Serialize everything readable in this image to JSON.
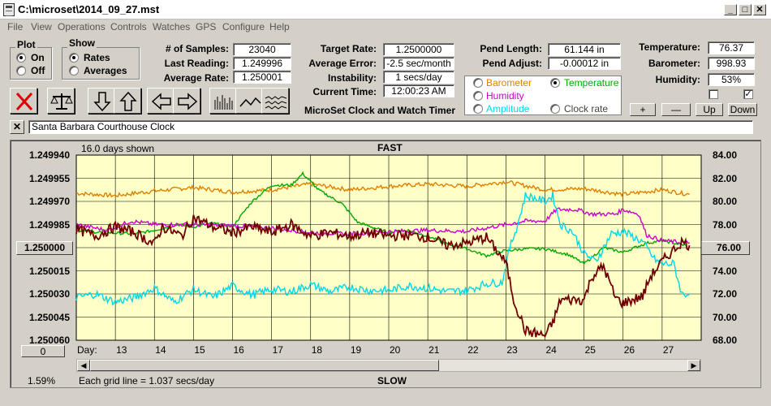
{
  "window": {
    "title": "C:\\microset\\2014_09_27.mst"
  },
  "menu": [
    "File",
    "View",
    "Operations",
    "Controls",
    "Watches",
    "GPS",
    "Configure",
    "Help"
  ],
  "plot_group": {
    "title": "Plot",
    "on": "On",
    "off": "Off",
    "selected": "On"
  },
  "show_group": {
    "title": "Show",
    "rates": "Rates",
    "averages": "Averages",
    "selected": "Rates"
  },
  "stats": {
    "samples_label": "# of Samples:",
    "samples": "23040",
    "last_label": "Last Reading:",
    "last": "1.249996",
    "avg_label": "Average Rate:",
    "avg": "1.250001",
    "target_label": "Target Rate:",
    "target": "1.2500000",
    "error_label": "Average Error:",
    "error": "-2.5 sec/month",
    "instab_label": "Instability:",
    "instab": "1 secs/day",
    "time_label": "Current Time:",
    "time": "12:00:23 AM",
    "pend_len_label": "Pend Length:",
    "pend_len": "61.144 in",
    "pend_adj_label": "Pend Adjust:",
    "pend_adj": "-0.00012 in",
    "temp_label": "Temperature:",
    "temp": "76.37",
    "baro_label": "Barometer:",
    "baro": "998.93",
    "hum_label": "Humidity:",
    "hum": "53%"
  },
  "brand": "MicroSet Clock and Watch Timer",
  "overlay_select": {
    "barometer": "Barometer",
    "temperature": "Temperature",
    "humidity": "Humidity",
    "amplitude": "Amplitude",
    "clock_rate": "Clock rate",
    "selected": "Temperature"
  },
  "colors": {
    "barometer": "#e08000",
    "temperature": "#00aa00",
    "humidity": "#cc00cc",
    "amplitude": "#00d8e8",
    "clock_rate": "#700000",
    "plot_bg": "#ffffc8"
  },
  "buttons": {
    "plus": "+",
    "minus": "—",
    "up": "Up",
    "down": "Down"
  },
  "checkboxes": {
    "left_checked": false,
    "right_checked": true,
    "right_mark": "✓"
  },
  "watch_name": "Santa Barbara Courthouse Clock",
  "chart_data": {
    "type": "line",
    "top_label": "FAST",
    "bottom_label": "SLOW",
    "days_shown": "16.0 days shown",
    "grid_note": "Each grid line = 1.037 secs/day",
    "percent": "1.59%",
    "left_axis_box": "1.250000",
    "right_axis_box": "76.00",
    "zero_btn": "0",
    "day_prefix": "Day:",
    "ylim_left": [
      1.24994,
      1.25006
    ],
    "yticks_left": [
      "1.249940",
      "1.249955",
      "1.249970",
      "1.249985",
      "1.250000",
      "1.250015",
      "1.250030",
      "1.250045",
      "1.250060"
    ],
    "ylim_right": [
      68,
      84
    ],
    "yticks_right": [
      "84.00",
      "82.00",
      "80.00",
      "78.00",
      "76.00",
      "74.00",
      "72.00",
      "70.00",
      "68.00"
    ],
    "xlim": [
      12,
      28
    ],
    "days": [
      13,
      14,
      15,
      16,
      17,
      18,
      19,
      20,
      21,
      22,
      23,
      24,
      25,
      26,
      27
    ],
    "series": [
      {
        "key": "barometer",
        "color": "#e08000",
        "points": [
          [
            12,
            80.7
          ],
          [
            13,
            80.5
          ],
          [
            14,
            80.9
          ],
          [
            15,
            81.2
          ],
          [
            16,
            80.8
          ],
          [
            17,
            81.0
          ],
          [
            18,
            81.5
          ],
          [
            19,
            81.0
          ],
          [
            20,
            81.3
          ],
          [
            21,
            81.5
          ],
          [
            22,
            81.3
          ],
          [
            23,
            81.7
          ],
          [
            24,
            81.0
          ],
          [
            25,
            81.1
          ],
          [
            26,
            80.6
          ],
          [
            27,
            81.0
          ],
          [
            27.7,
            80.6
          ]
        ]
      },
      {
        "key": "temperature",
        "color": "#00aa00",
        "points": [
          [
            12,
            77.5
          ],
          [
            12.7,
            77.3
          ],
          [
            13.5,
            77.2
          ],
          [
            14,
            77.5
          ],
          [
            14.6,
            78.0
          ],
          [
            15,
            77.8
          ],
          [
            15.5,
            78.1
          ],
          [
            16,
            77.8
          ],
          [
            16.5,
            80.0
          ],
          [
            17,
            81.4
          ],
          [
            17.5,
            81.4
          ],
          [
            17.8,
            82.4
          ],
          [
            18.2,
            81.0
          ],
          [
            18.8,
            79.8
          ],
          [
            19.2,
            78.2
          ],
          [
            20,
            77.3
          ],
          [
            20.5,
            77.5
          ],
          [
            21,
            77.0
          ],
          [
            21.5,
            76.3
          ],
          [
            22,
            75.9
          ],
          [
            22.5,
            75.3
          ],
          [
            22.9,
            75.7
          ],
          [
            23.5,
            75.9
          ],
          [
            24,
            75.9
          ],
          [
            24.6,
            75.4
          ],
          [
            25,
            74.6
          ],
          [
            25.5,
            76.0
          ],
          [
            26,
            75.6
          ],
          [
            26.6,
            76.4
          ],
          [
            27,
            76.6
          ],
          [
            27.6,
            76.2
          ]
        ]
      },
      {
        "key": "humidity",
        "color": "#cc00cc",
        "points": [
          [
            12,
            78.0
          ],
          [
            12.8,
            77.5
          ],
          [
            13.4,
            78.3
          ],
          [
            14,
            78.0
          ],
          [
            15,
            78.0
          ],
          [
            16,
            77.9
          ],
          [
            17,
            77.7
          ],
          [
            18,
            77.3
          ],
          [
            19,
            77.2
          ],
          [
            20,
            77.4
          ],
          [
            21,
            77.5
          ],
          [
            22,
            77.4
          ],
          [
            23,
            78.0
          ],
          [
            23.5,
            78.3
          ],
          [
            24,
            78.3
          ],
          [
            24.3,
            79.3
          ],
          [
            24.8,
            79.3
          ],
          [
            25.2,
            78.9
          ],
          [
            25.8,
            78.9
          ],
          [
            26,
            79.3
          ],
          [
            26.4,
            78.9
          ],
          [
            26.6,
            77.1
          ],
          [
            27,
            76.6
          ],
          [
            27.7,
            76.4
          ]
        ]
      },
      {
        "key": "amplitude",
        "color": "#00d8e8",
        "points": [
          [
            12,
            71.7
          ],
          [
            12.5,
            72.0
          ],
          [
            13,
            71.3
          ],
          [
            13.5,
            71.7
          ],
          [
            14,
            72.5
          ],
          [
            14.5,
            71.3
          ],
          [
            15,
            72.4
          ],
          [
            15.5,
            71.7
          ],
          [
            16,
            72.7
          ],
          [
            16.5,
            71.9
          ],
          [
            17,
            72.4
          ],
          [
            17.5,
            72.2
          ],
          [
            18,
            72.8
          ],
          [
            18.5,
            72.2
          ],
          [
            19,
            72.6
          ],
          [
            19.5,
            72.3
          ],
          [
            20,
            72.3
          ],
          [
            20.5,
            72.7
          ],
          [
            21,
            72.5
          ],
          [
            21.5,
            72.2
          ],
          [
            22,
            72.3
          ],
          [
            22.5,
            72.9
          ],
          [
            22.9,
            73.0
          ],
          [
            23.1,
            76.0
          ],
          [
            23.3,
            78.0
          ],
          [
            23.5,
            80.5
          ],
          [
            24,
            80.0
          ],
          [
            24.2,
            80.5
          ],
          [
            24.4,
            78.0
          ],
          [
            24.7,
            77.4
          ],
          [
            25,
            75.5
          ],
          [
            25.3,
            74.8
          ],
          [
            25.7,
            77.2
          ],
          [
            26,
            77.4
          ],
          [
            26.5,
            76.5
          ],
          [
            26.8,
            75.0
          ],
          [
            27,
            74.6
          ],
          [
            27.3,
            74.6
          ],
          [
            27.5,
            72.0
          ],
          [
            27.7,
            72.0
          ]
        ]
      },
      {
        "key": "clock_rate",
        "color": "#700000",
        "points": [
          [
            12,
            77.6
          ],
          [
            12.5,
            77.0
          ],
          [
            13,
            77.8
          ],
          [
            13.5,
            77.3
          ],
          [
            14,
            76.3
          ],
          [
            14.2,
            77.8
          ],
          [
            14.7,
            77.0
          ],
          [
            15,
            78.6
          ],
          [
            15.5,
            77.8
          ],
          [
            16,
            77.3
          ],
          [
            16.5,
            77.8
          ],
          [
            17,
            77.3
          ],
          [
            17.5,
            78.0
          ],
          [
            18,
            77.0
          ],
          [
            18.5,
            77.3
          ],
          [
            19,
            77.0
          ],
          [
            19.5,
            77.3
          ],
          [
            20,
            77.0
          ],
          [
            20.5,
            77.1
          ],
          [
            21,
            76.9
          ],
          [
            21.5,
            76.2
          ],
          [
            22,
            76.4
          ],
          [
            22.5,
            76.9
          ],
          [
            23,
            74.7
          ],
          [
            23.2,
            71.5
          ],
          [
            23.5,
            68.8
          ],
          [
            24,
            68.4
          ],
          [
            24.2,
            69.5
          ],
          [
            24.4,
            71.5
          ],
          [
            25,
            71.5
          ],
          [
            25.2,
            73.5
          ],
          [
            25.5,
            74.4
          ],
          [
            25.8,
            71.7
          ],
          [
            26,
            71.2
          ],
          [
            26.5,
            71.8
          ],
          [
            26.7,
            73.5
          ],
          [
            27,
            74.8
          ],
          [
            27.5,
            76.5
          ],
          [
            27.7,
            76.2
          ]
        ]
      }
    ]
  }
}
